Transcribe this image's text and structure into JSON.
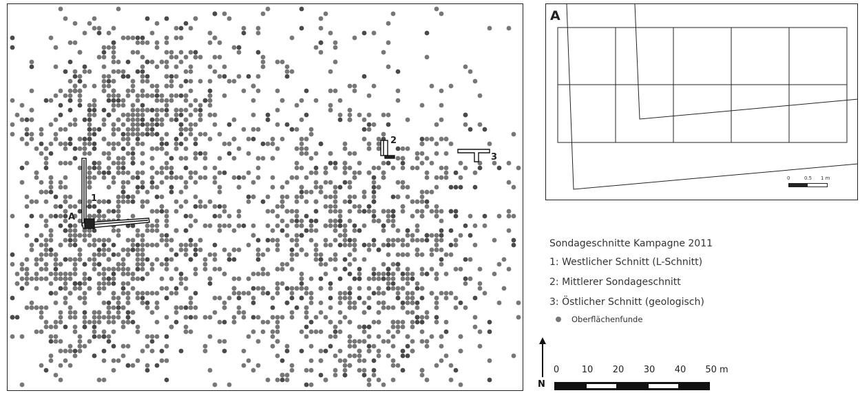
{
  "labels": {
    "trench_1": "1",
    "trench_2": "2",
    "trench_3": "3",
    "profile_A": "A"
  },
  "inset": {
    "letter": "A",
    "scale": [
      "0",
      "0.5",
      "1 m"
    ]
  },
  "legend": {
    "title": "Sondageschnitte Kampagne 2011",
    "items": [
      "1: Westlicher Schnitt (L-Schnitt)",
      "2: Mittlerer Sondageschnitt",
      "3: Östlicher Schnitt (geologisch)"
    ],
    "point_label": "Oberflächenfunde"
  },
  "north_label": "N",
  "scale_bar": {
    "ticks": [
      "0",
      "10",
      "20",
      "30",
      "40",
      "50 m"
    ]
  },
  "colors": {
    "find_dot": "#777777",
    "find_dot_dark": "#4a4a4a",
    "frame": "#222222"
  },
  "icons": [
    "north-arrow-icon"
  ]
}
